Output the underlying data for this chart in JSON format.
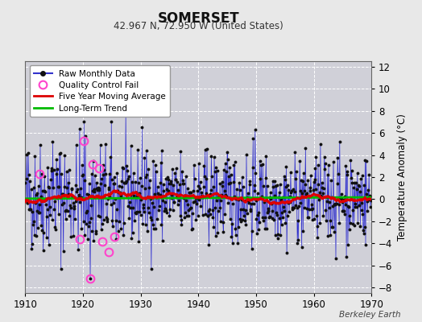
{
  "title": "SOMERSET",
  "subtitle": "42.967 N, 72.950 W (United States)",
  "ylabel": "Temperature Anomaly (°C)",
  "watermark": "Berkeley Earth",
  "xlim": [
    1910,
    1970
  ],
  "ylim": [
    -8.5,
    12.5
  ],
  "yticks": [
    -8,
    -6,
    -4,
    -2,
    0,
    2,
    4,
    6,
    8,
    10,
    12
  ],
  "xticks": [
    1910,
    1920,
    1930,
    1940,
    1950,
    1960,
    1970
  ],
  "fig_bg_color": "#e8e8e8",
  "plot_bg_color": "#d0d0d8",
  "grid_color": "#ffffff",
  "raw_line_color": "#3333cc",
  "raw_line_light_color": "#aaaaee",
  "raw_dot_color": "#111111",
  "ma_color": "#dd0000",
  "trend_color": "#00bb00",
  "qc_color": "#ff44cc",
  "seed": 42,
  "qc_points": [
    [
      1912.4,
      2.3
    ],
    [
      1919.5,
      -3.6
    ],
    [
      1920.2,
      5.3
    ],
    [
      1921.7,
      3.2
    ],
    [
      1922.8,
      2.8
    ],
    [
      1923.3,
      -3.8
    ],
    [
      1924.5,
      -4.8
    ],
    [
      1925.5,
      -3.4
    ],
    [
      1921.3,
      -7.2
    ]
  ]
}
